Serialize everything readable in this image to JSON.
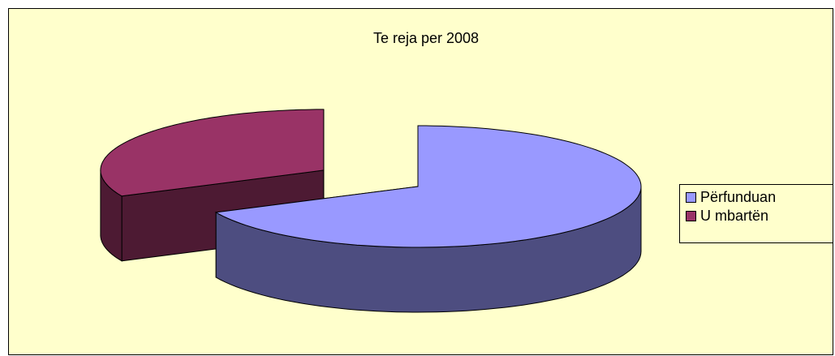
{
  "chart_data": {
    "type": "pie3d",
    "title": "Te reja per 2008",
    "categories": [
      "Përfunduan",
      "U mbartën"
    ],
    "values": [
      68,
      32
    ],
    "colors": [
      "#9999ff",
      "#993366"
    ],
    "exploded": [
      false,
      true
    ]
  }
}
